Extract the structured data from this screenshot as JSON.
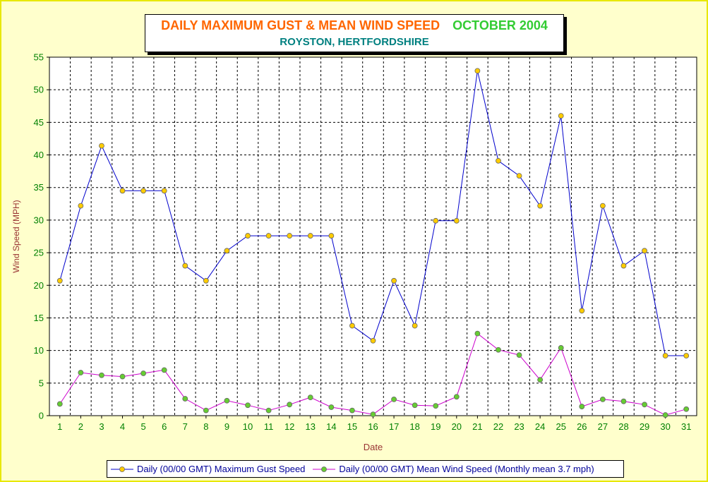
{
  "title": {
    "main": "DAILY MAXIMUM GUST & MEAN WIND SPEED",
    "month": "OCTOBER 2004",
    "subtitle": "ROYSTON, HERTFORDSHIRE"
  },
  "colors": {
    "background": "#ffffcc",
    "gust_line": "#0000cc",
    "gust_marker": "#ffcc00",
    "mean_line": "#cc00cc",
    "mean_marker": "#66cc33",
    "axis_labels": "#008000",
    "axis_titles": "#993333"
  },
  "legend": {
    "gust": "Daily (00/00 GMT) Maximum Gust Speed",
    "mean": "Daily (00/00 GMT) Mean Wind Speed (Monthly mean 3.7 mph)"
  },
  "chart_data": {
    "type": "line",
    "title": "DAILY MAXIMUM GUST & MEAN WIND SPEED OCTOBER 2004",
    "subtitle": "ROYSTON, HERTFORDSHIRE",
    "xlabel": "Date",
    "ylabel": "Wind Speed (MPH)",
    "ylim": [
      0,
      55
    ],
    "ytick_step": 5,
    "grid": true,
    "legend_position": "bottom",
    "x": [
      1,
      2,
      3,
      4,
      5,
      6,
      7,
      8,
      9,
      10,
      11,
      12,
      13,
      14,
      15,
      16,
      17,
      18,
      19,
      20,
      21,
      22,
      23,
      24,
      25,
      26,
      27,
      28,
      29,
      30,
      31
    ],
    "series": [
      {
        "name": "Daily (00/00 GMT) Maximum Gust Speed",
        "values": [
          20.7,
          32.2,
          41.4,
          34.5,
          34.5,
          34.5,
          23.0,
          20.7,
          25.3,
          27.6,
          27.6,
          27.6,
          27.6,
          27.6,
          13.8,
          11.5,
          20.7,
          13.8,
          29.9,
          29.9,
          52.9,
          39.1,
          36.8,
          32.2,
          46.0,
          16.1,
          32.2,
          23.0,
          25.3,
          9.2,
          9.2
        ]
      },
      {
        "name": "Daily (00/00 GMT) Mean Wind Speed (Monthly mean 3.7 mph)",
        "values": [
          1.8,
          6.6,
          6.2,
          6.0,
          6.5,
          7.0,
          2.6,
          0.8,
          2.3,
          1.6,
          0.8,
          1.7,
          2.8,
          1.3,
          0.8,
          0.2,
          2.5,
          1.6,
          1.5,
          2.9,
          12.6,
          10.1,
          9.3,
          5.5,
          10.4,
          1.4,
          2.5,
          2.2,
          1.7,
          0.1,
          1.0
        ]
      }
    ]
  }
}
